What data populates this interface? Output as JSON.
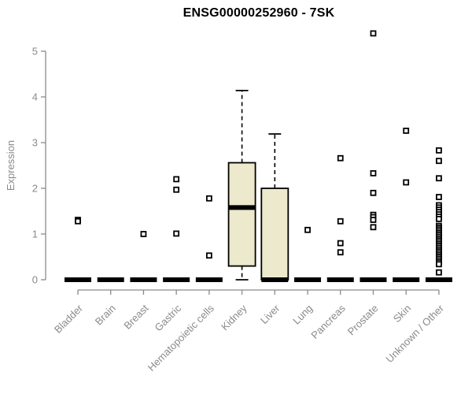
{
  "chart_data": {
    "type": "boxplot",
    "title": "ENSG00000252960 - 7SK",
    "ylabel": "Expression",
    "xlabel": "",
    "ylim": [
      0,
      5
    ],
    "yticks": [
      0,
      1,
      2,
      3,
      4,
      5
    ],
    "grid": false,
    "legend": false,
    "axis_color": "#8a8a8a",
    "label_color": "#8a8a8a",
    "box_fill": "#ede9cc",
    "box_stroke": "#000000",
    "categories": [
      "Bladder",
      "Brain",
      "Breast",
      "Gastric",
      "Hematopoietic cells",
      "Kidney",
      "Liver",
      "Lung",
      "Pancreas",
      "Prostate",
      "Skin",
      "Unknown / Other"
    ],
    "series": [
      {
        "category": "Bladder",
        "q1": 0,
        "median": 0,
        "q3": 0,
        "whisker_low": 0,
        "whisker_high": 0,
        "outliers": [
          1.31,
          1.28
        ]
      },
      {
        "category": "Brain",
        "q1": 0,
        "median": 0,
        "q3": 0,
        "whisker_low": 0,
        "whisker_high": 0,
        "outliers": []
      },
      {
        "category": "Breast",
        "q1": 0,
        "median": 0,
        "q3": 0,
        "whisker_low": 0,
        "whisker_high": 0,
        "outliers": [
          1.0
        ]
      },
      {
        "category": "Gastric",
        "q1": 0,
        "median": 0,
        "q3": 0,
        "whisker_low": 0,
        "whisker_high": 0,
        "outliers": [
          2.2,
          1.97,
          1.01
        ]
      },
      {
        "category": "Hematopoietic cells",
        "q1": 0,
        "median": 0,
        "q3": 0,
        "whisker_low": 0,
        "whisker_high": 0,
        "outliers": [
          1.78,
          0.53
        ]
      },
      {
        "category": "Kidney",
        "q1": 0.3,
        "median": 1.58,
        "q3": 2.56,
        "whisker_low": 0,
        "whisker_high": 4.14,
        "outliers": []
      },
      {
        "category": "Liver",
        "q1": 0,
        "median": 0,
        "q3": 2.0,
        "whisker_low": 0,
        "whisker_high": 3.19,
        "outliers": []
      },
      {
        "category": "Lung",
        "q1": 0,
        "median": 0,
        "q3": 0,
        "whisker_low": 0,
        "whisker_high": 0,
        "outliers": [
          1.09
        ]
      },
      {
        "category": "Pancreas",
        "q1": 0,
        "median": 0,
        "q3": 0,
        "whisker_low": 0,
        "whisker_high": 0,
        "outliers": [
          2.66,
          1.28,
          0.8,
          0.6
        ]
      },
      {
        "category": "Prostate",
        "q1": 0,
        "median": 0,
        "q3": 0,
        "whisker_low": 0,
        "whisker_high": 0,
        "outliers": [
          5.39,
          2.33,
          1.9,
          1.42,
          1.37,
          1.31,
          1.15
        ]
      },
      {
        "category": "Skin",
        "q1": 0,
        "median": 0,
        "q3": 0,
        "whisker_low": 0,
        "whisker_high": 0,
        "outliers": [
          3.26,
          2.13
        ]
      },
      {
        "category": "Unknown / Other",
        "q1": 0,
        "median": 0,
        "q3": 0,
        "whisker_low": 0,
        "whisker_high": 0,
        "outliers": [
          2.83,
          2.6,
          2.22,
          1.81,
          1.63,
          1.58,
          1.53,
          1.48,
          1.43,
          1.38,
          1.33,
          1.18,
          1.14,
          1.1,
          1.06,
          1.02,
          0.98,
          0.94,
          0.9,
          0.86,
          0.82,
          0.78,
          0.74,
          0.7,
          0.66,
          0.62,
          0.58,
          0.54,
          0.5,
          0.46,
          0.42,
          0.38,
          0.34,
          0.16
        ]
      }
    ]
  }
}
